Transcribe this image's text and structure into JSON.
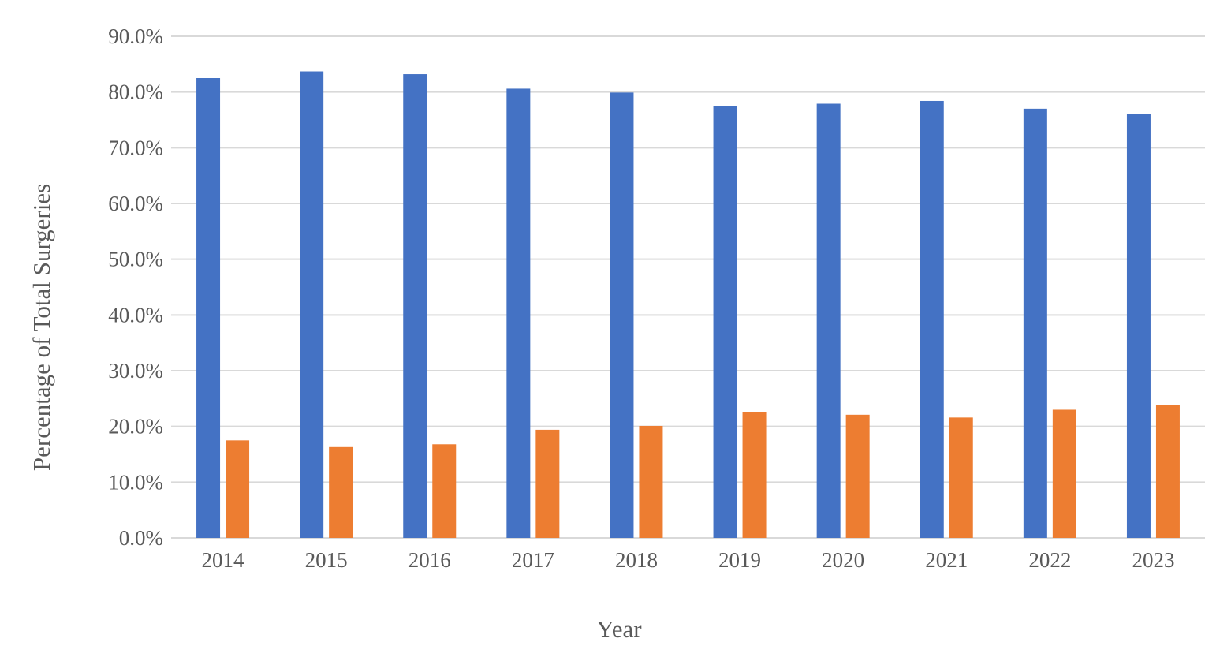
{
  "chart_data": {
    "type": "bar",
    "title": "",
    "xlabel": "Year",
    "ylabel": "Percentage of Total Surgeries",
    "categories": [
      "2014",
      "2015",
      "2016",
      "2017",
      "2018",
      "2019",
      "2020",
      "2021",
      "2022",
      "2023"
    ],
    "series": [
      {
        "color": "#4472C4",
        "values": [
          82.5,
          83.7,
          83.2,
          80.6,
          79.9,
          77.5,
          77.9,
          78.4,
          77.0,
          76.1
        ]
      },
      {
        "color": "#ED7D31",
        "values": [
          17.5,
          16.3,
          16.8,
          19.4,
          20.1,
          22.5,
          22.1,
          21.6,
          23.0,
          23.9
        ]
      }
    ],
    "ylim": [
      0,
      90
    ],
    "yticks": [
      0,
      10,
      20,
      30,
      40,
      50,
      60,
      70,
      80,
      90
    ],
    "ytick_labels": [
      "0.0%",
      "10.0%",
      "20.0%",
      "30.0%",
      "40.0%",
      "50.0%",
      "60.0%",
      "70.0%",
      "80.0%",
      "90.0%"
    ],
    "grid": true,
    "legend": "none"
  }
}
